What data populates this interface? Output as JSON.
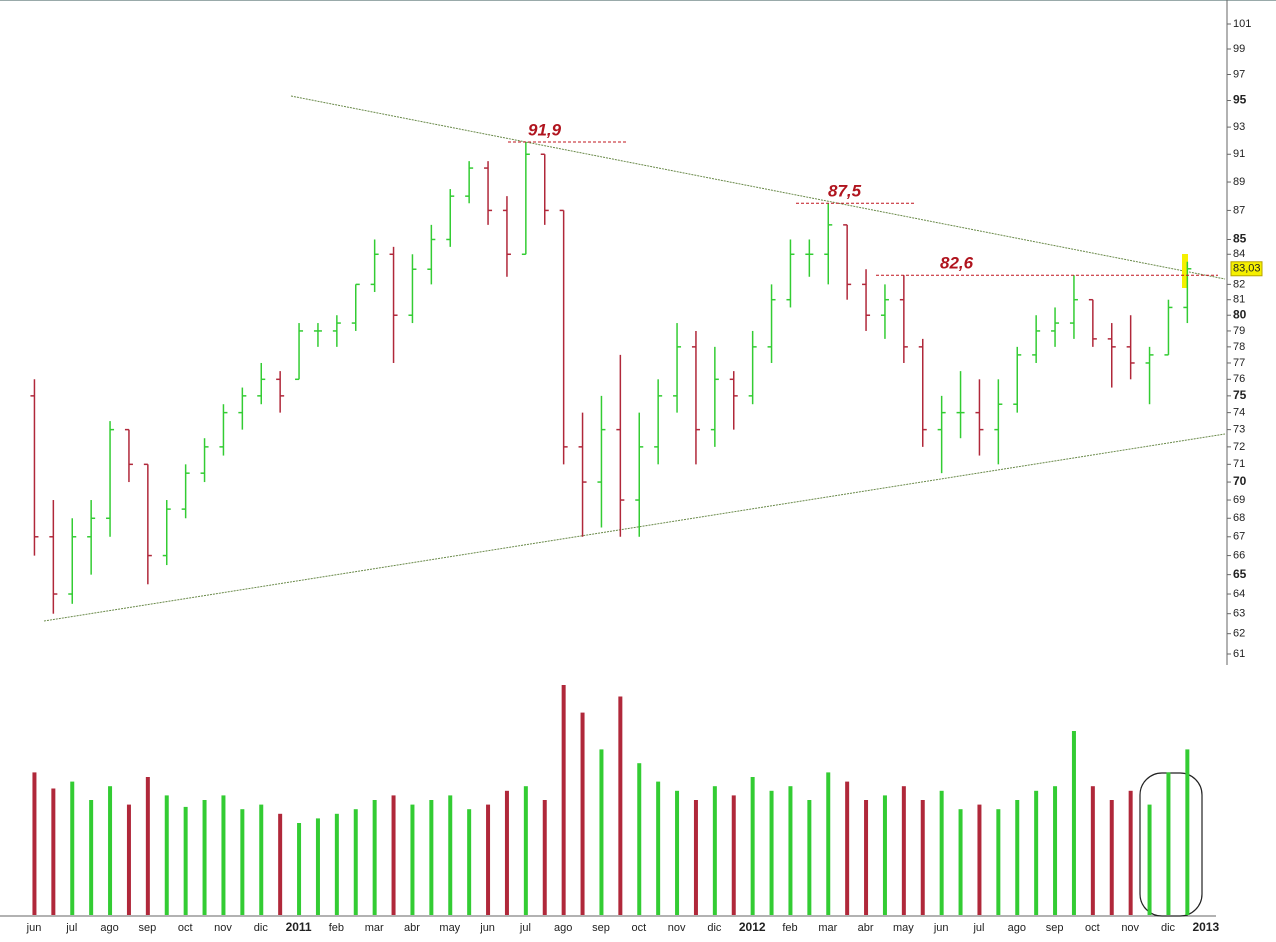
{
  "chart_data": {
    "type": "ohlc",
    "categories": [
      "jun",
      null,
      "jul",
      null,
      "ago",
      null,
      "sep",
      null,
      "oct",
      null,
      "nov",
      null,
      "dic",
      null,
      "2011",
      null,
      "feb",
      null,
      "mar",
      null,
      "abr",
      null,
      "may",
      null,
      "jun",
      null,
      "jul",
      null,
      "ago",
      null,
      "sep",
      null,
      "oct",
      null,
      "nov",
      null,
      "dic",
      null,
      "2012",
      null,
      "feb",
      null,
      "mar",
      null,
      "abr",
      null,
      "may",
      null,
      "jun",
      null,
      "jul",
      null,
      "ago",
      null,
      "sep",
      null,
      "oct",
      null,
      "nov",
      null,
      "dic",
      null,
      "2013"
    ],
    "open": [
      75,
      67,
      64,
      67,
      68,
      73,
      71,
      66,
      68.5,
      70.5,
      72,
      74,
      75,
      76,
      76,
      79,
      79,
      79.5,
      82,
      84,
      80,
      83,
      85,
      88,
      90,
      87,
      84,
      91,
      87,
      72,
      70,
      73,
      69,
      72,
      75,
      78,
      73,
      76,
      75,
      78,
      81,
      84,
      84,
      86,
      82,
      80,
      81,
      78,
      73,
      74,
      74,
      73,
      74.5,
      77.5,
      79,
      79.5,
      81,
      78.5,
      78,
      77,
      77.5,
      80.5,
      null
    ],
    "high": [
      76,
      69,
      68,
      69,
      73.5,
      73,
      71,
      69,
      71,
      72.5,
      74.5,
      75.5,
      77,
      76.5,
      79.5,
      79.5,
      80,
      82,
      85,
      84.5,
      84,
      86,
      88.5,
      90.5,
      90.5,
      88,
      91.9,
      91,
      87,
      74,
      75,
      77.5,
      74,
      76,
      79.5,
      79,
      78,
      76.5,
      79,
      82,
      85,
      85,
      87.5,
      86,
      83,
      82,
      82.6,
      78.5,
      75,
      76.5,
      76,
      76,
      78,
      80,
      80.5,
      82.6,
      81,
      79.5,
      80,
      78,
      81,
      83.5,
      null
    ],
    "low": [
      66,
      63,
      63.5,
      65,
      67,
      70,
      64.5,
      65.5,
      68,
      70,
      71.5,
      73,
      74.5,
      74,
      76,
      78,
      78,
      79,
      81.5,
      77,
      79.5,
      82,
      84.5,
      87.5,
      86,
      82.5,
      84,
      86,
      71,
      67,
      67.5,
      67,
      67,
      71,
      74,
      71,
      72,
      73,
      74.5,
      77,
      80.5,
      82.5,
      82,
      81,
      79,
      78.5,
      77,
      72,
      70.5,
      72.5,
      71.5,
      71,
      74,
      77,
      78,
      78.5,
      78,
      75.5,
      76,
      74.5,
      77.5,
      79.5,
      null
    ],
    "close": [
      67,
      64,
      67,
      68,
      73,
      71,
      66,
      68.5,
      70.5,
      72,
      74,
      75,
      76,
      75,
      79,
      79,
      79.5,
      82,
      84,
      80,
      83,
      85,
      88,
      90,
      87,
      84,
      91,
      87,
      72,
      70,
      73,
      69,
      72,
      75,
      78,
      73,
      76,
      75,
      78,
      81,
      84,
      84,
      86,
      82,
      80,
      81,
      78,
      73,
      74,
      74,
      73,
      74.5,
      77.5,
      79,
      79.5,
      81,
      78.5,
      78,
      77,
      77.5,
      80.5,
      83.03,
      null
    ],
    "volume": [
      62,
      55,
      58,
      50,
      56,
      48,
      60,
      52,
      47,
      50,
      52,
      46,
      48,
      44,
      40,
      42,
      44,
      46,
      50,
      52,
      48,
      50,
      52,
      46,
      48,
      54,
      56,
      50,
      100,
      88,
      72,
      95,
      66,
      58,
      54,
      50,
      56,
      52,
      60,
      54,
      56,
      50,
      62,
      58,
      50,
      52,
      56,
      50,
      54,
      46,
      48,
      46,
      50,
      54,
      56,
      80,
      56,
      50,
      54,
      48,
      62,
      72,
      null
    ],
    "up_color": "#33cc33",
    "down_color": "#b0283a",
    "ylim": [
      61,
      101
    ],
    "log_scale": true,
    "yticks": [
      101,
      99,
      97,
      95,
      93,
      91,
      89,
      87,
      85,
      84,
      82,
      81,
      80,
      79,
      78,
      77,
      76,
      75,
      74,
      73,
      72,
      71,
      70,
      69,
      68,
      67,
      66,
      65,
      64,
      63,
      62,
      61
    ],
    "volume_lim": [
      0,
      100
    ],
    "last_price": {
      "value": 83.03,
      "label": "83,03"
    },
    "annotations": [
      {
        "value": 91.9,
        "label": "91,9"
      },
      {
        "value": 87.5,
        "label": "87,5"
      },
      {
        "value": 82.6,
        "label": "82,6"
      }
    ]
  }
}
